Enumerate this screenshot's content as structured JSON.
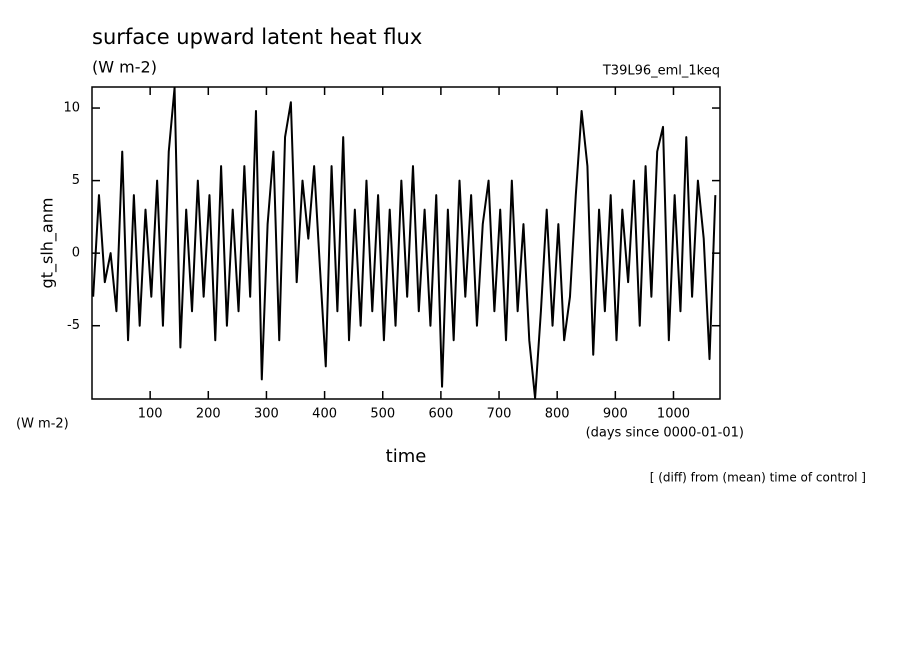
{
  "chart_data": {
    "type": "line",
    "title": "surface upward latent heat flux",
    "units": "(W m-2)",
    "run_label": "T39L96_eml_1keq",
    "ylabel": "gt_slh_anm",
    "yunits": "(W m-2)",
    "xlabel": "time",
    "xunits": "(days since 0000-01-01)",
    "note": "[ (diff) from (mean) time of control ]",
    "x": [
      2,
      12,
      22,
      32,
      42,
      52,
      62,
      72,
      82,
      92,
      102,
      112,
      122,
      132,
      142,
      152,
      162,
      172,
      182,
      192,
      202,
      212,
      222,
      232,
      242,
      252,
      262,
      272,
      282,
      292,
      302,
      312,
      322,
      332,
      342,
      352,
      362,
      372,
      382,
      392,
      402,
      412,
      422,
      432,
      442,
      452,
      462,
      472,
      482,
      492,
      502,
      512,
      522,
      532,
      542,
      552,
      562,
      572,
      582,
      592,
      602,
      612,
      622,
      632,
      642,
      652,
      662,
      672,
      682,
      692,
      702,
      712,
      722,
      732,
      742,
      752,
      762,
      772,
      782,
      792,
      802,
      812,
      822,
      832,
      842,
      852,
      862,
      872,
      882,
      892,
      902,
      912,
      922,
      932,
      942,
      952,
      962,
      972,
      982,
      992,
      1002,
      1012,
      1022,
      1032,
      1042,
      1052,
      1062,
      1072
    ],
    "series": [
      {
        "color": "#000000",
        "values": [
          -3,
          4,
          -2,
          0,
          -4,
          7,
          -6,
          4,
          -5,
          3,
          -3,
          5,
          -5,
          7,
          11.4,
          -6.5,
          3,
          -4,
          5,
          -3,
          4,
          -6,
          6,
          -5,
          3,
          -4,
          6,
          -3,
          9.8,
          -8.7,
          2,
          7,
          -6,
          8,
          10.4,
          -2,
          5,
          1,
          6,
          -1,
          -7.8,
          6,
          -4,
          8,
          -6,
          3,
          -5,
          5,
          -4,
          4,
          -6,
          3,
          -5,
          5,
          -3,
          6,
          -4,
          3,
          -5,
          4,
          -9.2,
          3,
          -6,
          5,
          -3,
          4,
          -5,
          2,
          5,
          -4,
          3,
          -6,
          5,
          -4,
          2,
          -6,
          -10,
          -4,
          3,
          -5,
          2,
          -6,
          -3,
          4,
          9.8,
          6,
          -7,
          3,
          -4,
          4,
          -6,
          3,
          -2,
          5,
          -5,
          6,
          -3,
          7,
          8.7,
          -6,
          4,
          -4,
          8,
          -3,
          5,
          1,
          -7.3,
          4
        ]
      }
    ],
    "xlim": [
      0,
      1080
    ],
    "ylim": [
      -10.05,
      11.45
    ],
    "xticks": [
      100,
      200,
      300,
      400,
      500,
      600,
      700,
      800,
      900,
      1000
    ],
    "yticks": [
      -5,
      0,
      5,
      10
    ]
  }
}
